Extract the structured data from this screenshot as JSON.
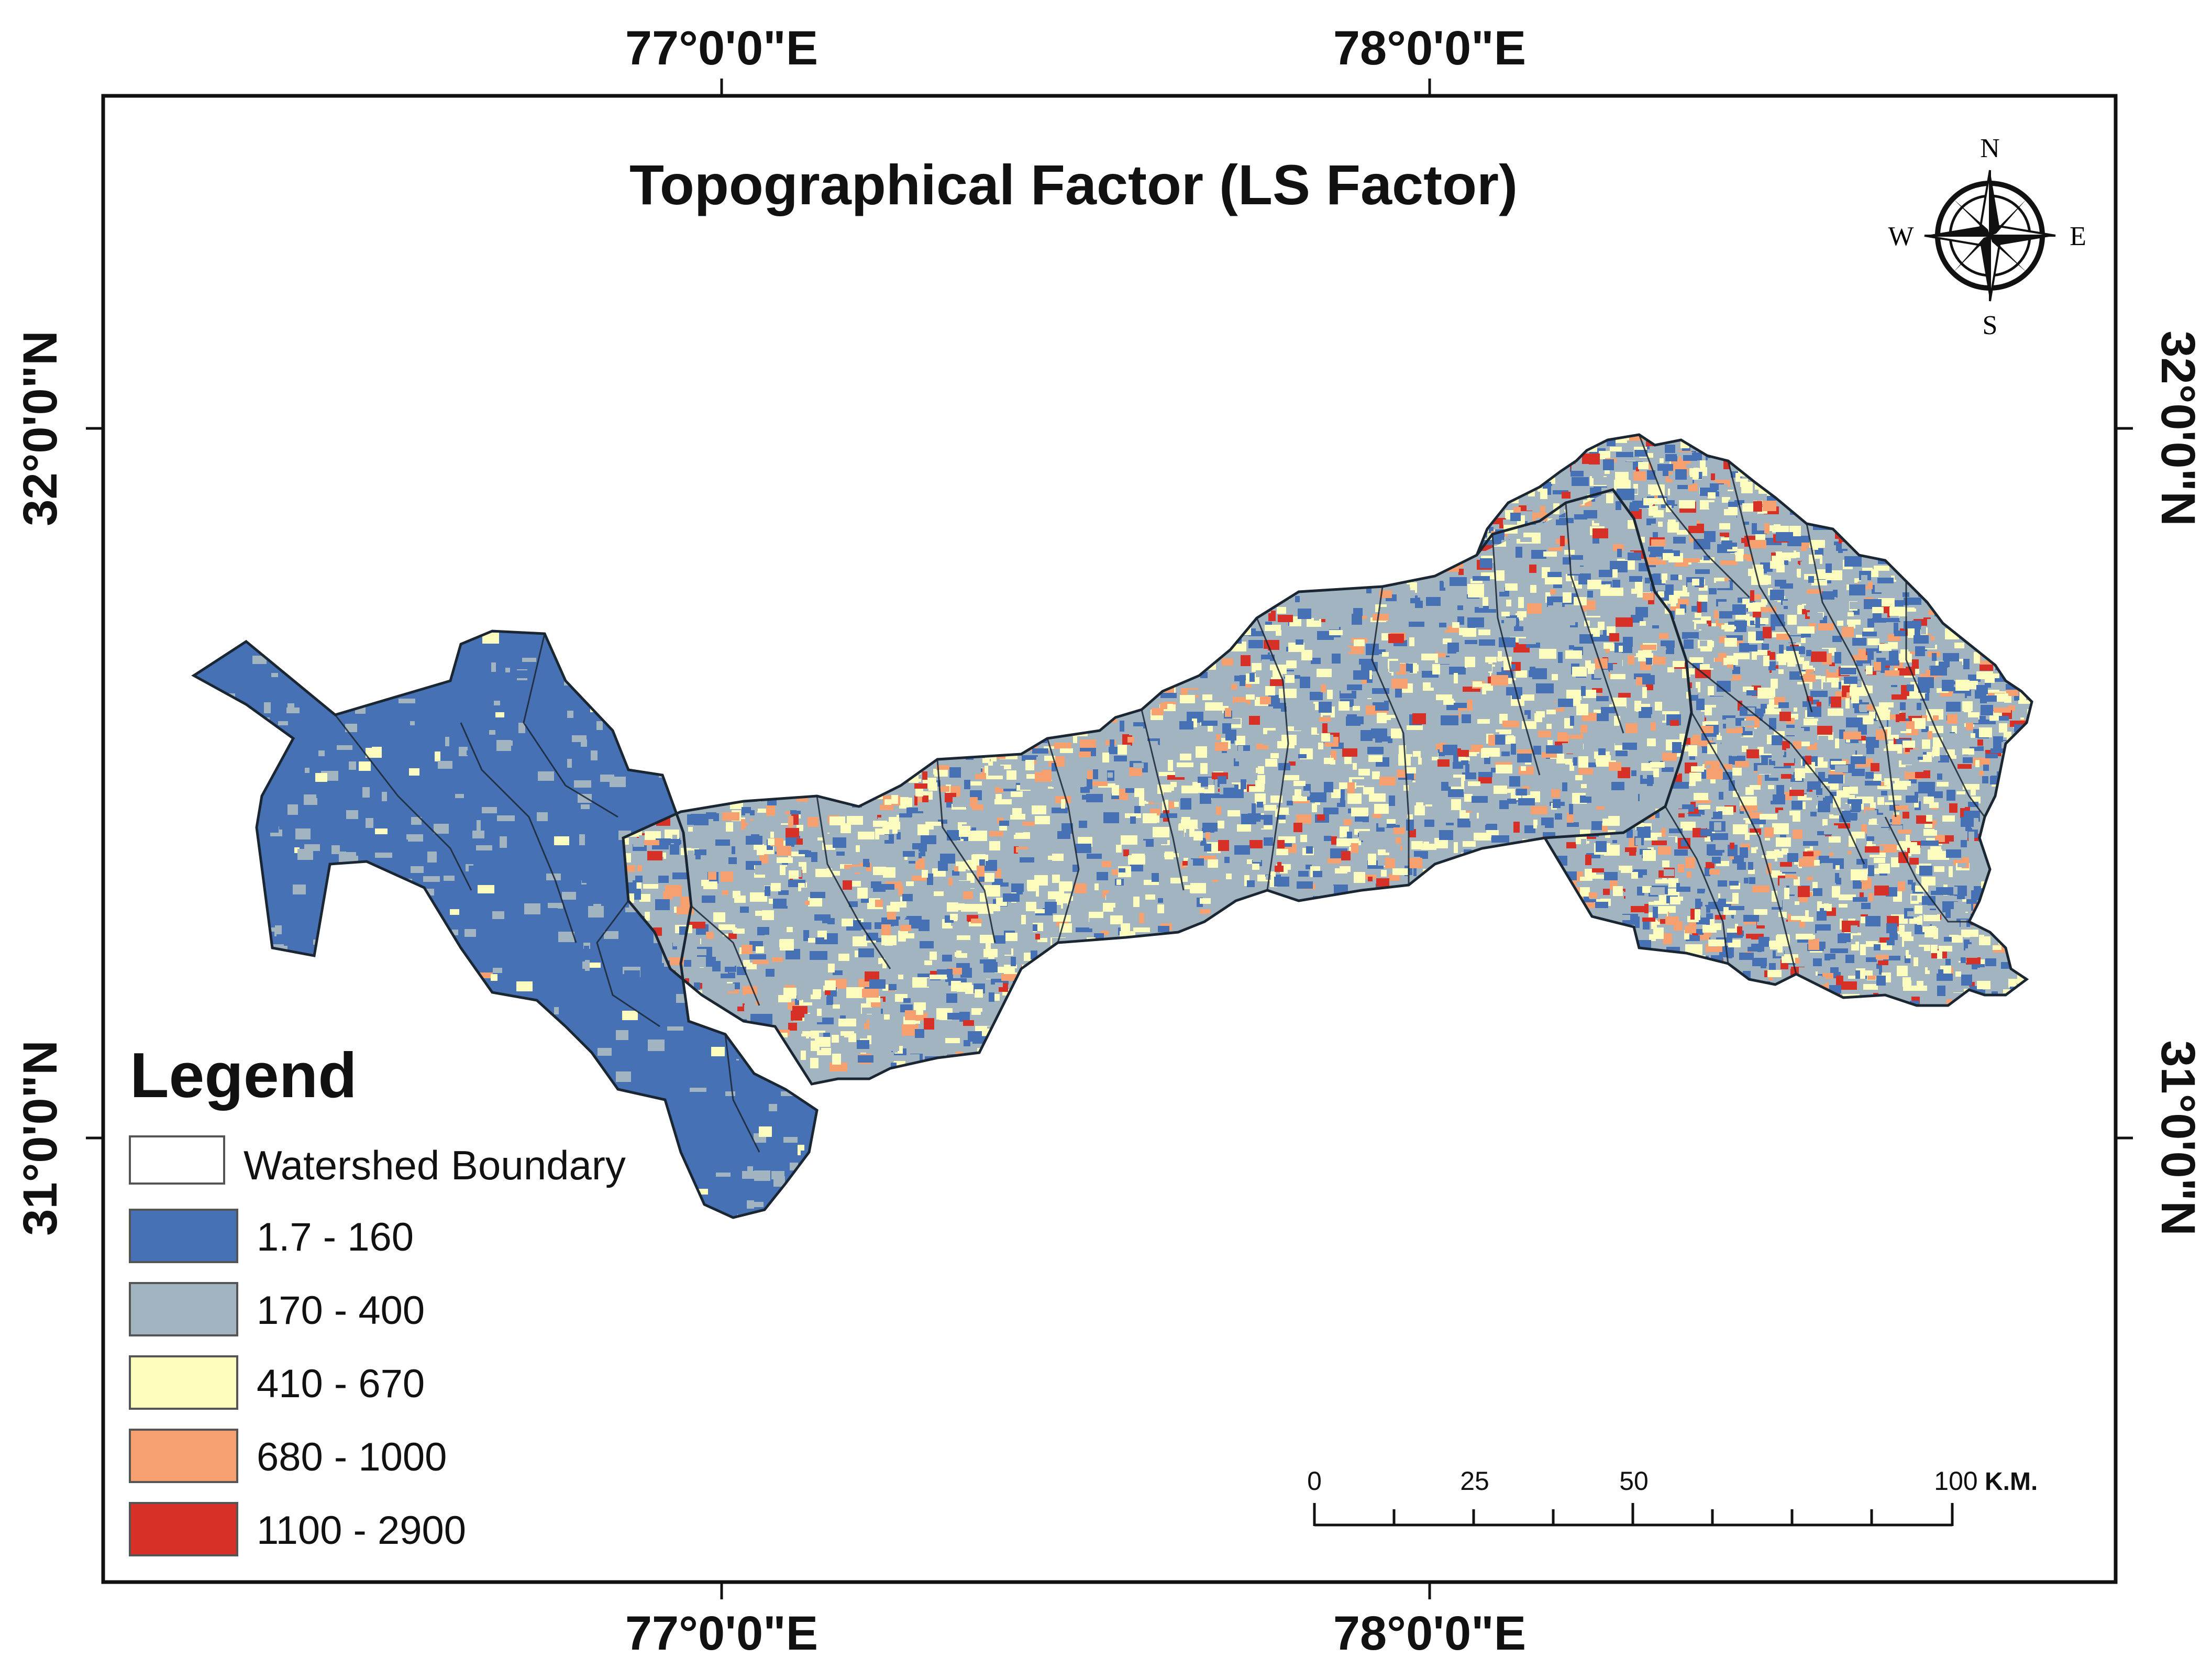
{
  "title": "Topographical Factor (LS Factor)",
  "graticule": {
    "lon_labels": [
      "77°0'0\"E",
      "78°0'0\"E"
    ],
    "lat_labels": [
      "32°0'0\"N",
      "31°0'0\"N"
    ]
  },
  "north_arrow": {
    "icon": "compass-rose-icon",
    "n": "N",
    "s": "S",
    "e": "E",
    "w": "W"
  },
  "legend": {
    "heading": "Legend",
    "boundary_label": "Watershed Boundary",
    "classes": [
      {
        "label": "1.7 - 160",
        "color": "#4672b5"
      },
      {
        "label": "170 - 400",
        "color": "#a3b4c1"
      },
      {
        "label": "410 - 670",
        "color": "#fdfcbf"
      },
      {
        "label": "680 - 1000",
        "color": "#f5a06e"
      },
      {
        "label": "1100  - 2900",
        "color": "#d73027"
      }
    ]
  },
  "scale_bar": {
    "ticks": [
      "0",
      "25",
      "50",
      "100"
    ],
    "unit": "K.M."
  }
}
